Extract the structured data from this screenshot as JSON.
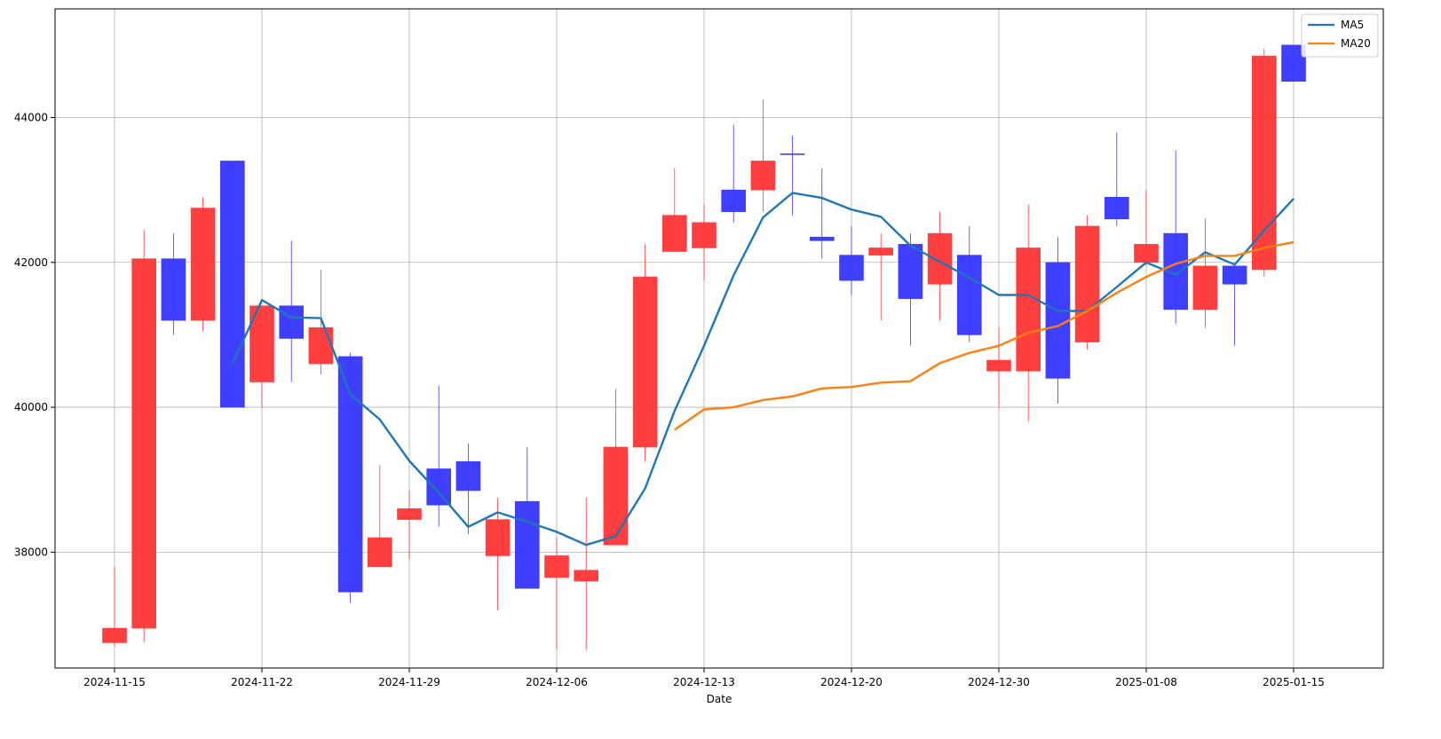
{
  "chart_data": {
    "type": "candlestick",
    "xlabel": "Date",
    "ylabel": "",
    "ylim": [
      36400,
      45500
    ],
    "grid": true,
    "legend_placement": "top-right",
    "x_tick_labels": [
      "2024-11-15",
      "2024-11-22",
      "2024-11-29",
      "2024-12-06",
      "2024-12-13",
      "2024-12-20",
      "2024-12-30",
      "2025-01-08",
      "2025-01-15"
    ],
    "x_tick_index": [
      0,
      5,
      10,
      15,
      20,
      25,
      30,
      35,
      40
    ],
    "y_ticks": [
      38000,
      40000,
      42000,
      44000
    ],
    "y_tick_labels": [
      "38000",
      "40000",
      "42000",
      "44000"
    ],
    "colors": {
      "up": "#ff3b3b",
      "down": "#3b3bff",
      "ma5": "#1f77b4",
      "ma20": "#ff7f0e",
      "grid": "#b0b0b0"
    },
    "candles": [
      {
        "date": "2024-11-15",
        "open": 36750,
        "close": 36950,
        "high": 37800,
        "low": 36700,
        "dir": "up"
      },
      {
        "date": "2024-11-18",
        "open": 36950,
        "close": 42050,
        "high": 42450,
        "low": 36750,
        "dir": "up"
      },
      {
        "date": "2024-11-19",
        "open": 42050,
        "close": 41200,
        "high": 42400,
        "low": 41000,
        "dir": "down"
      },
      {
        "date": "2024-11-20",
        "open": 41200,
        "close": 42750,
        "high": 42900,
        "low": 41050,
        "dir": "up"
      },
      {
        "date": "2024-11-21",
        "open": 43400,
        "close": 40000,
        "high": 43400,
        "low": 40000,
        "dir": "down"
      },
      {
        "date": "2024-11-22",
        "open": 40350,
        "close": 41400,
        "high": 41400,
        "low": 40000,
        "dir": "up"
      },
      {
        "date": "2024-11-25",
        "open": 41400,
        "close": 40950,
        "high": 42300,
        "low": 40350,
        "dir": "down"
      },
      {
        "date": "2024-11-26",
        "open": 40600,
        "close": 41100,
        "high": 41900,
        "low": 40450,
        "dir": "up"
      },
      {
        "date": "2024-11-27",
        "open": 40700,
        "close": 37450,
        "high": 40750,
        "low": 37300,
        "dir": "down"
      },
      {
        "date": "2024-11-28",
        "open": 37800,
        "close": 38200,
        "high": 39200,
        "low": 37800,
        "dir": "up"
      },
      {
        "date": "2024-11-29",
        "open": 38450,
        "close": 38600,
        "high": 38850,
        "low": 37900,
        "dir": "up"
      },
      {
        "date": "2024-12-02",
        "open": 39150,
        "close": 38650,
        "high": 40300,
        "low": 38350,
        "dir": "down"
      },
      {
        "date": "2024-12-03",
        "open": 39250,
        "close": 38850,
        "high": 39500,
        "low": 38250,
        "dir": "down"
      },
      {
        "date": "2024-12-04",
        "open": 37950,
        "close": 38450,
        "high": 38750,
        "low": 37200,
        "dir": "up"
      },
      {
        "date": "2024-12-05",
        "open": 38700,
        "close": 37500,
        "high": 39450,
        "low": 37500,
        "dir": "down"
      },
      {
        "date": "2024-12-06",
        "open": 37650,
        "close": 37950,
        "high": 38200,
        "low": 36650,
        "dir": "up"
      },
      {
        "date": "2024-12-09",
        "open": 37600,
        "close": 37750,
        "high": 38750,
        "low": 36650,
        "dir": "up"
      },
      {
        "date": "2024-12-10",
        "open": 38100,
        "close": 39450,
        "high": 40250,
        "low": 38100,
        "dir": "up"
      },
      {
        "date": "2024-12-11",
        "open": 39450,
        "close": 41800,
        "high": 42250,
        "low": 39250,
        "dir": "up"
      },
      {
        "date": "2024-12-12",
        "open": 42150,
        "close": 42650,
        "high": 43300,
        "low": 42150,
        "dir": "up"
      },
      {
        "date": "2024-12-13",
        "open": 42200,
        "close": 42550,
        "high": 42800,
        "low": 41750,
        "dir": "up"
      },
      {
        "date": "2024-12-16",
        "open": 43000,
        "close": 42700,
        "high": 43900,
        "low": 42550,
        "dir": "down"
      },
      {
        "date": "2024-12-17",
        "open": 43000,
        "close": 43400,
        "high": 44250,
        "low": 42700,
        "dir": "up"
      },
      {
        "date": "2024-12-18",
        "open": 43500,
        "close": 43500,
        "high": 43750,
        "low": 42650,
        "dir": "down"
      },
      {
        "date": "2024-12-19",
        "open": 42350,
        "close": 42300,
        "high": 43300,
        "low": 42050,
        "dir": "down"
      },
      {
        "date": "2024-12-20",
        "open": 42100,
        "close": 41750,
        "high": 42500,
        "low": 41550,
        "dir": "down"
      },
      {
        "date": "2024-12-23",
        "open": 42100,
        "close": 42200,
        "high": 42400,
        "low": 41200,
        "dir": "up"
      },
      {
        "date": "2024-12-24",
        "open": 42250,
        "close": 41500,
        "high": 42400,
        "low": 40850,
        "dir": "down"
      },
      {
        "date": "2024-12-25",
        "open": 41700,
        "close": 42400,
        "high": 42700,
        "low": 41200,
        "dir": "up"
      },
      {
        "date": "2024-12-26",
        "open": 42100,
        "close": 41000,
        "high": 42500,
        "low": 40900,
        "dir": "down"
      },
      {
        "date": "2024-12-30",
        "open": 40500,
        "close": 40650,
        "high": 41100,
        "low": 40000,
        "dir": "up"
      },
      {
        "date": "2025-01-02",
        "open": 40500,
        "close": 42200,
        "high": 42800,
        "low": 39800,
        "dir": "up"
      },
      {
        "date": "2025-01-03",
        "open": 42000,
        "close": 40400,
        "high": 42350,
        "low": 40050,
        "dir": "down"
      },
      {
        "date": "2025-01-06",
        "open": 40900,
        "close": 42500,
        "high": 42650,
        "low": 40800,
        "dir": "up"
      },
      {
        "date": "2025-01-07",
        "open": 42900,
        "close": 42600,
        "high": 43800,
        "low": 42500,
        "dir": "down"
      },
      {
        "date": "2025-01-08",
        "open": 42000,
        "close": 42250,
        "high": 43000,
        "low": 41950,
        "dir": "up"
      },
      {
        "date": "2025-01-09",
        "open": 42400,
        "close": 41350,
        "high": 43550,
        "low": 41150,
        "dir": "down"
      },
      {
        "date": "2025-01-10",
        "open": 41350,
        "close": 41950,
        "high": 42600,
        "low": 41100,
        "dir": "up"
      },
      {
        "date": "2025-01-13",
        "open": 41950,
        "close": 41700,
        "high": 41950,
        "low": 40850,
        "dir": "down"
      },
      {
        "date": "2025-01-14",
        "open": 41900,
        "close": 44850,
        "high": 44950,
        "low": 41800,
        "dir": "up"
      },
      {
        "date": "2025-01-15",
        "open": 45000,
        "close": 44500,
        "high": 45000,
        "low": 44500,
        "dir": "down"
      }
    ],
    "series": [
      {
        "name": "MA5",
        "start_index": 4,
        "values": [
          40600,
          41480,
          41240,
          41230,
          40180,
          39830,
          39260,
          38820,
          38350,
          38550,
          38420,
          38280,
          38100,
          38220,
          38880,
          39950,
          40850,
          41820,
          42620,
          42960,
          42890,
          42730,
          42630,
          42230,
          42010,
          41790,
          41550,
          41550,
          41330,
          41330,
          41660,
          42000,
          41830,
          42140,
          41970,
          42440,
          42880
        ]
      },
      {
        "name": "MA20",
        "start_index": 19,
        "values": [
          39690,
          39970,
          40000,
          40100,
          40150,
          40260,
          40280,
          40340,
          40360,
          40610,
          40750,
          40850,
          41030,
          41120,
          41330,
          41580,
          41800,
          41980,
          42090,
          42090,
          42200,
          42280
        ]
      }
    ]
  }
}
